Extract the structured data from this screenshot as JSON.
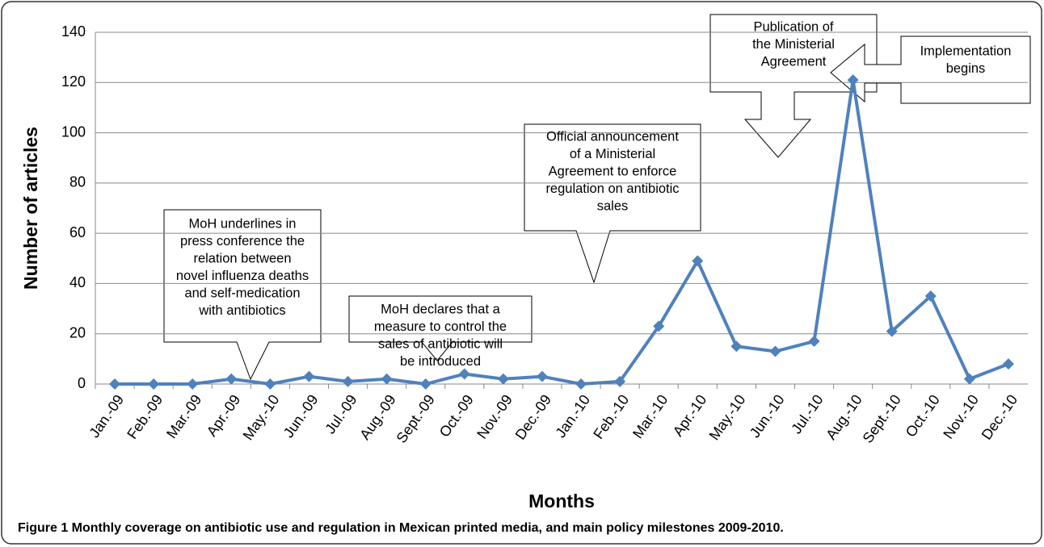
{
  "chart_data": {
    "type": "line",
    "caption": "Figure 1 Monthly coverage on antibiotic use and regulation in Mexican printed media, and main policy milestones 2009-2010.",
    "xlabel": "Months",
    "ylabel": "Number of articles",
    "categories": [
      "Jan.-09",
      "Feb.-09",
      "Mar.-09",
      "Apr.-09",
      "May.-10",
      "Jun.-09",
      "Jul.-09",
      "Aug.-09",
      "Sept.-09",
      "Oct.-09",
      "Nov.-09",
      "Dec.-09",
      "Jan.-10",
      "Feb.-10",
      "Mar.-10",
      "Apr.-10",
      "May.-10",
      "Jun.-10",
      "Jul.-10",
      "Aug.-10",
      "Sept.-10",
      "Oct.-10",
      "Nov.-10",
      "Dec.-10"
    ],
    "series": [
      {
        "name": "Number of articles",
        "color": "#4f81bd",
        "values": [
          0,
          0,
          0,
          2,
          0,
          3,
          1,
          2,
          0,
          4,
          2,
          3,
          0,
          1,
          23,
          49,
          15,
          13,
          17,
          121,
          21,
          35,
          2,
          8
        ]
      }
    ],
    "ylim": [
      0,
      140
    ],
    "yticks": [
      0,
      20,
      40,
      60,
      80,
      100,
      120,
      140
    ],
    "grid": true,
    "annotations": [
      {
        "lines": [
          "MoH underlines in",
          "press conference the",
          "relation between",
          "novel influenza deaths",
          "and self-medication",
          "with antibiotics"
        ]
      },
      {
        "lines": [
          "MoH declares that a",
          "measure to control the",
          "sales of antibiotic will",
          "be introduced"
        ]
      },
      {
        "lines": [
          "Official announcement",
          "of a Ministerial",
          "Agreement to enforce",
          "regulation on antibiotic",
          "sales"
        ]
      },
      {
        "lines": [
          "Publication of",
          "the Ministerial",
          "Agreement"
        ]
      },
      {
        "lines": [
          "Implementation",
          "begins"
        ]
      }
    ]
  }
}
